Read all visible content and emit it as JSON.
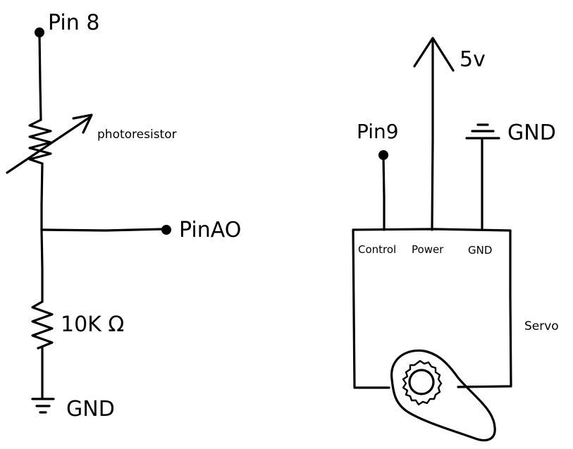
{
  "left_circuit": {
    "pin8_label": "Pin 8",
    "photoresistor_label": "photoresistor",
    "pinA0_label": "PinAO",
    "resistor_label": "10K Ω",
    "gnd_label": "GND"
  },
  "servo": {
    "power_label": "5v",
    "pin9_label": "Pin9",
    "gnd_top_label": "GND",
    "control_pin_label": "Control",
    "power_pin_label": "Power",
    "gnd_pin_label": "GND",
    "servo_label": "Servo"
  }
}
